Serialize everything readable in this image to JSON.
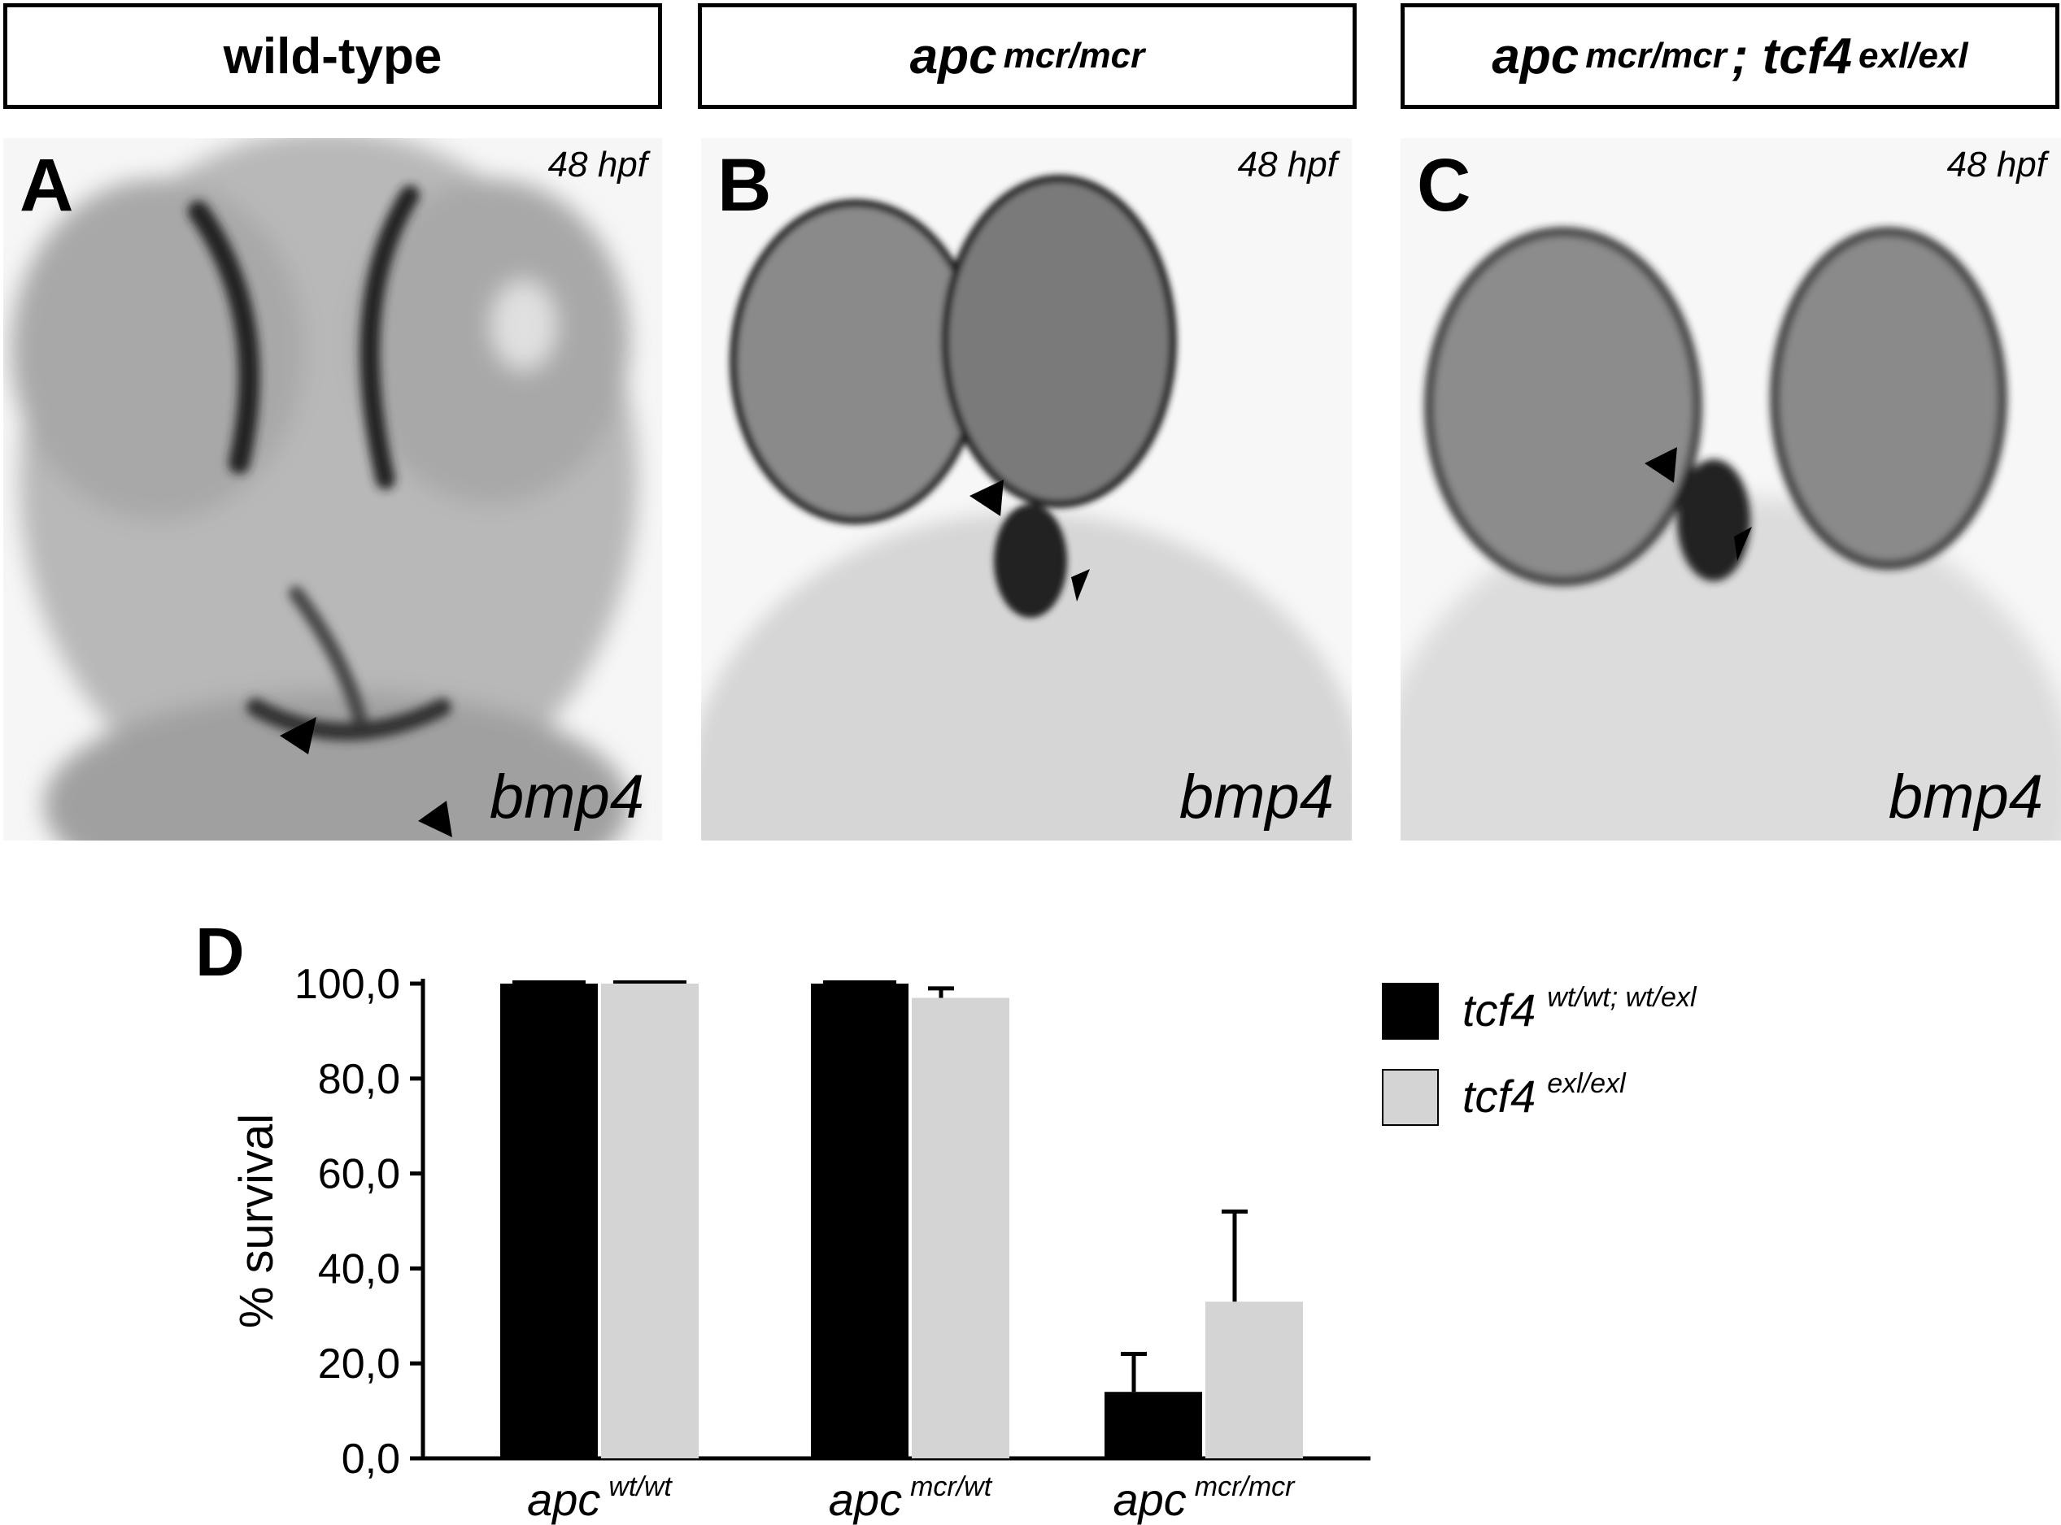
{
  "genotypes": [
    {
      "text": "wild-type",
      "sup": ""
    },
    {
      "text": "apc",
      "sup": "mcr/mcr"
    },
    {
      "text": "apc",
      "sup": "mcr/mcr",
      "text2": "; tcf4",
      "sup2": "exl/exl"
    }
  ],
  "panels": [
    {
      "letter": "A",
      "stage": "48 hpf",
      "gene": "bmp4"
    },
    {
      "letter": "B",
      "stage": "48 hpf",
      "gene": "bmp4"
    },
    {
      "letter": "C",
      "stage": "48 hpf",
      "gene": "bmp4"
    }
  ],
  "chart_data": {
    "type": "bar",
    "panel_letter": "D",
    "ylabel": "% survival",
    "ylim": [
      0,
      100
    ],
    "yticks": [
      "0,0",
      "20,0",
      "40,0",
      "60,0",
      "80,0",
      "100,0"
    ],
    "categories": [
      {
        "base": "apc",
        "sup": "wt/wt"
      },
      {
        "base": "apc",
        "sup": "mcr/wt"
      },
      {
        "base": "apc",
        "sup": "mcr/mcr"
      }
    ],
    "series": [
      {
        "name": "tcf4",
        "name_sup": "wt/wt; wt/exl",
        "color": "#000000",
        "values": [
          100,
          100,
          14
        ],
        "errors": [
          0,
          0,
          8
        ]
      },
      {
        "name": "tcf4",
        "name_sup": "exl/exl",
        "color": "#d4d4d4",
        "values": [
          100,
          97,
          33
        ],
        "errors": [
          0,
          2,
          19
        ]
      }
    ],
    "legend_position": "top-right"
  }
}
